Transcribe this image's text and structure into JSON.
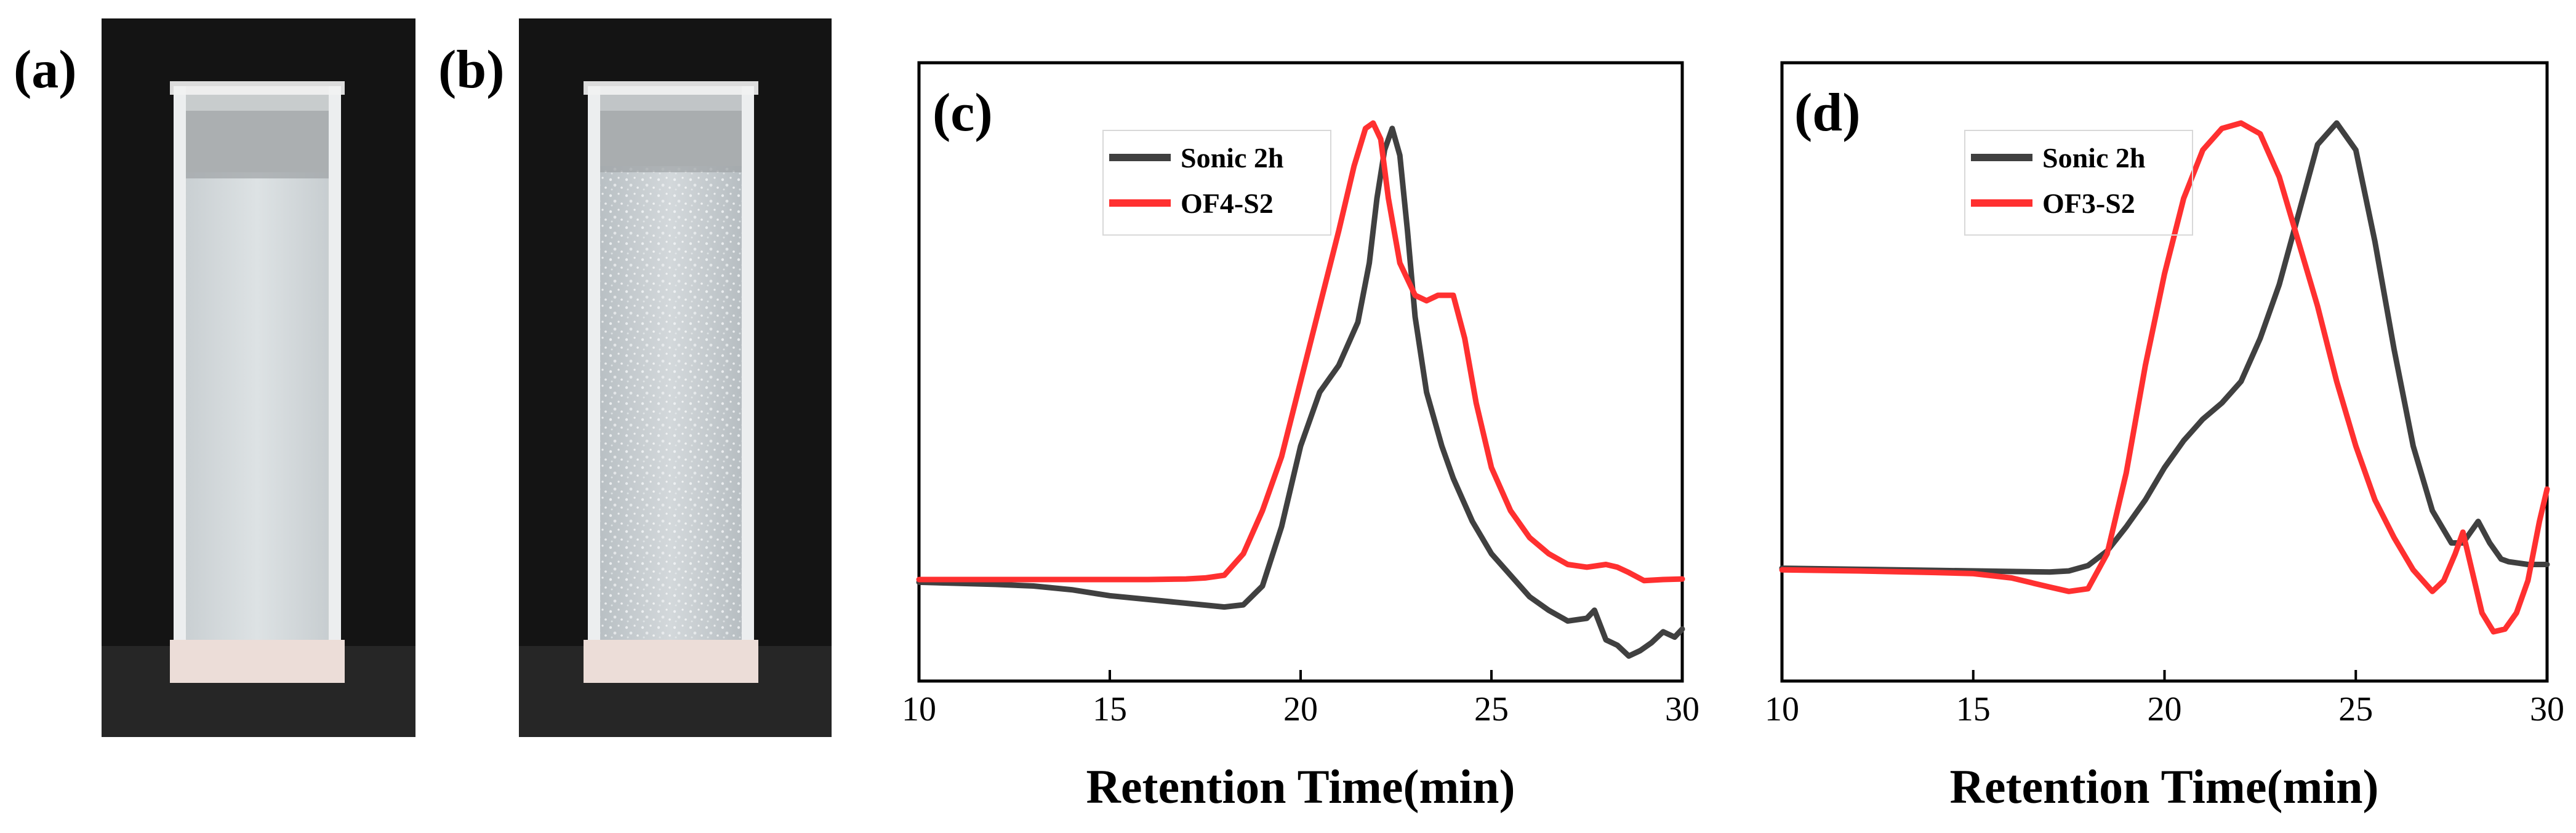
{
  "photos": [
    {
      "label": "(a)",
      "description_name": "cuvette-photo-a"
    },
    {
      "label": "(b)",
      "description_name": "cuvette-photo-b"
    }
  ],
  "chart_data": [
    {
      "type": "line",
      "panel_label": "(c)",
      "title": "",
      "xlabel": "Retention Time(min)",
      "ylabel": "",
      "xlim": [
        10,
        30
      ],
      "ylim": [
        0,
        1
      ],
      "xticks": [
        10,
        15,
        20,
        25,
        30
      ],
      "yticks_shown": false,
      "legend": {
        "placement": "top-left",
        "entries": [
          "Sonic 2h",
          "OF4-S2"
        ]
      },
      "series": [
        {
          "name": "Sonic 2h",
          "color": "#404040",
          "x": [
            10,
            11,
            12,
            13,
            14,
            15,
            16,
            17,
            18,
            18.5,
            19,
            19.5,
            20,
            20.5,
            21,
            21.5,
            21.8,
            22,
            22.2,
            22.4,
            22.6,
            22.8,
            23,
            23.3,
            23.7,
            24,
            24.5,
            25,
            25.5,
            26,
            26.5,
            27,
            27.5,
            27.7,
            28,
            28.3,
            28.6,
            28.9,
            29.2,
            29.5,
            29.8,
            30
          ],
          "y": [
            0.147,
            0.145,
            0.143,
            0.14,
            0.133,
            0.122,
            0.115,
            0.108,
            0.101,
            0.105,
            0.14,
            0.25,
            0.4,
            0.5,
            0.55,
            0.63,
            0.74,
            0.86,
            0.95,
            0.99,
            0.94,
            0.8,
            0.64,
            0.5,
            0.4,
            0.34,
            0.26,
            0.2,
            0.16,
            0.12,
            0.095,
            0.075,
            0.08,
            0.095,
            0.04,
            0.03,
            0.01,
            0.02,
            0.035,
            0.055,
            0.045,
            0.06
          ]
        },
        {
          "name": "OF4-S2",
          "color": "#ff3030",
          "x": [
            10,
            12,
            14,
            16,
            17,
            17.5,
            18,
            18.5,
            19,
            19.5,
            20,
            20.5,
            21,
            21.4,
            21.7,
            21.9,
            22.1,
            22.3,
            22.6,
            23,
            23.3,
            23.6,
            24,
            24.3,
            24.6,
            25,
            25.5,
            26,
            26.5,
            27,
            27.5,
            28,
            28.3,
            28.6,
            29,
            29.5,
            30
          ],
          "y": [
            0.152,
            0.152,
            0.152,
            0.152,
            0.153,
            0.155,
            0.16,
            0.2,
            0.28,
            0.38,
            0.52,
            0.66,
            0.8,
            0.92,
            0.99,
            1.0,
            0.97,
            0.86,
            0.74,
            0.68,
            0.67,
            0.68,
            0.68,
            0.6,
            0.48,
            0.36,
            0.28,
            0.23,
            0.2,
            0.18,
            0.175,
            0.18,
            0.175,
            0.165,
            0.15,
            0.152,
            0.153
          ]
        }
      ]
    },
    {
      "type": "line",
      "panel_label": "(d)",
      "title": "",
      "xlabel": "Retention Time(min)",
      "ylabel": "",
      "xlim": [
        10,
        30
      ],
      "ylim": [
        0,
        1
      ],
      "xticks": [
        10,
        15,
        20,
        25,
        30
      ],
      "yticks_shown": false,
      "legend": {
        "placement": "top-left",
        "entries": [
          "Sonic 2h",
          "OF3-S2"
        ]
      },
      "series": [
        {
          "name": "Sonic 2h",
          "color": "#404040",
          "x": [
            10,
            12,
            14,
            16,
            17,
            17.5,
            18,
            18.5,
            19,
            19.5,
            20,
            20.5,
            21,
            21.5,
            22,
            22.5,
            23,
            23.5,
            24,
            24.5,
            25,
            25.5,
            26,
            26.5,
            27,
            27.5,
            27.8,
            28,
            28.2,
            28.5,
            28.8,
            29,
            29.5,
            30
          ],
          "y": [
            0.173,
            0.171,
            0.169,
            0.167,
            0.166,
            0.168,
            0.178,
            0.205,
            0.25,
            0.3,
            0.36,
            0.41,
            0.45,
            0.48,
            0.52,
            0.6,
            0.7,
            0.83,
            0.96,
            1.0,
            0.95,
            0.78,
            0.58,
            0.4,
            0.28,
            0.22,
            0.22,
            0.24,
            0.26,
            0.22,
            0.19,
            0.185,
            0.18,
            0.18
          ]
        },
        {
          "name": "OF3-S2",
          "color": "#ff3030",
          "x": [
            10,
            12,
            14,
            15,
            16,
            17,
            17.5,
            18,
            18.5,
            19,
            19.5,
            20,
            20.5,
            21,
            21.5,
            22,
            22.5,
            23,
            23.5,
            24,
            24.5,
            25,
            25.5,
            26,
            26.5,
            27,
            27.3,
            27.6,
            27.8,
            28,
            28.3,
            28.6,
            28.9,
            29.2,
            29.5,
            29.8,
            30
          ],
          "y": [
            0.17,
            0.168,
            0.165,
            0.163,
            0.155,
            0.138,
            0.13,
            0.135,
            0.2,
            0.35,
            0.55,
            0.72,
            0.86,
            0.95,
            0.99,
            1.0,
            0.98,
            0.9,
            0.78,
            0.66,
            0.52,
            0.4,
            0.3,
            0.23,
            0.17,
            0.13,
            0.15,
            0.2,
            0.24,
            0.18,
            0.09,
            0.055,
            0.06,
            0.09,
            0.15,
            0.26,
            0.32
          ]
        }
      ]
    }
  ]
}
